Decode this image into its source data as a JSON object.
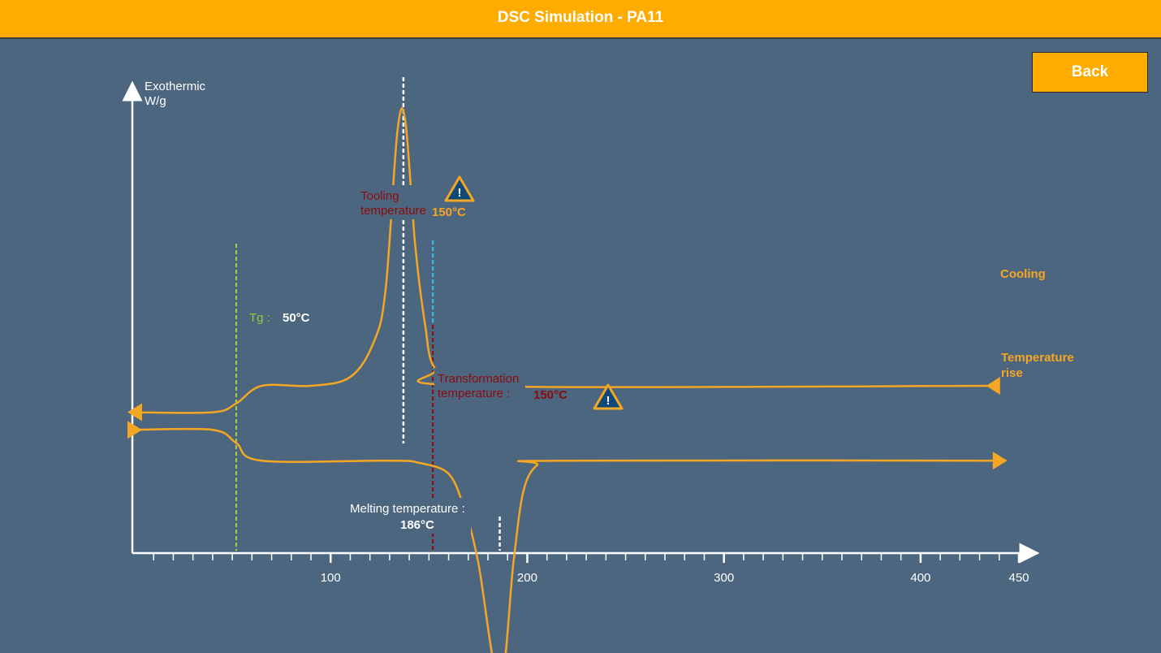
{
  "app": {
    "title": "DSC Simulation - PA11",
    "back_label": "Back"
  },
  "colors": {
    "background": "#4c6680",
    "header": "#ffab00",
    "curve": "#f5a623",
    "tg_line": "#a6d23a",
    "tg_text": "#9bc53d",
    "cooling_line": "#33c7e8",
    "transformation": "#8b0c0c",
    "warning_fill": "#0d4a7a"
  },
  "chart_data": {
    "type": "line",
    "title": "DSC Simulation - PA11",
    "ylabel_line1": "Exothermic",
    "ylabel_line2": "W/g",
    "xlabel": "",
    "xlim": [
      0,
      450
    ],
    "x_ticks": [
      100,
      200,
      300,
      400,
      450
    ],
    "minor_tick_step": 10,
    "grid": false,
    "series": [
      {
        "name": "Cooling",
        "direction": "right-to-left",
        "points": [
          [
            0,
            32
          ],
          [
            40,
            32
          ],
          [
            52,
            34
          ],
          [
            65,
            38
          ],
          [
            90,
            38
          ],
          [
            110,
            40
          ],
          [
            122,
            48
          ],
          [
            128,
            60
          ],
          [
            134,
            96
          ],
          [
            138,
            98
          ],
          [
            143,
            70
          ],
          [
            148,
            52
          ],
          [
            153,
            42
          ],
          [
            170,
            38
          ],
          [
            440,
            38
          ]
        ]
      },
      {
        "name": "Temperature rise",
        "direction": "left-to-right",
        "points": [
          [
            0,
            28
          ],
          [
            40,
            28
          ],
          [
            52,
            25
          ],
          [
            65,
            21
          ],
          [
            130,
            21
          ],
          [
            145,
            20.5
          ],
          [
            160,
            18
          ],
          [
            168,
            10
          ],
          [
            175,
            -2
          ],
          [
            186,
            -30
          ],
          [
            193,
            -2
          ],
          [
            198,
            14
          ],
          [
            205,
            20
          ],
          [
            215,
            21
          ],
          [
            440,
            21
          ]
        ]
      }
    ],
    "series_labels": {
      "cooling": "Cooling",
      "rise_line1": "Temperature",
      "rise_line2": "rise"
    },
    "annotations": {
      "tg": {
        "label": "Tg :",
        "value_text": "50°C",
        "x": 52
      },
      "tooling": {
        "label_line1": "Tooling",
        "label_line2": "temperature",
        "value_text": "150°C",
        "x": 137
      },
      "cooling_marker": {
        "x": 152
      },
      "transformation": {
        "label_line1": "Transformation",
        "label_line2": "temperature :",
        "value_text": "150°C",
        "x": 152
      },
      "melting": {
        "label": "Melting temperature :",
        "value_text": "186°C",
        "x": 186
      }
    },
    "warnings": [
      "!",
      "!"
    ]
  }
}
